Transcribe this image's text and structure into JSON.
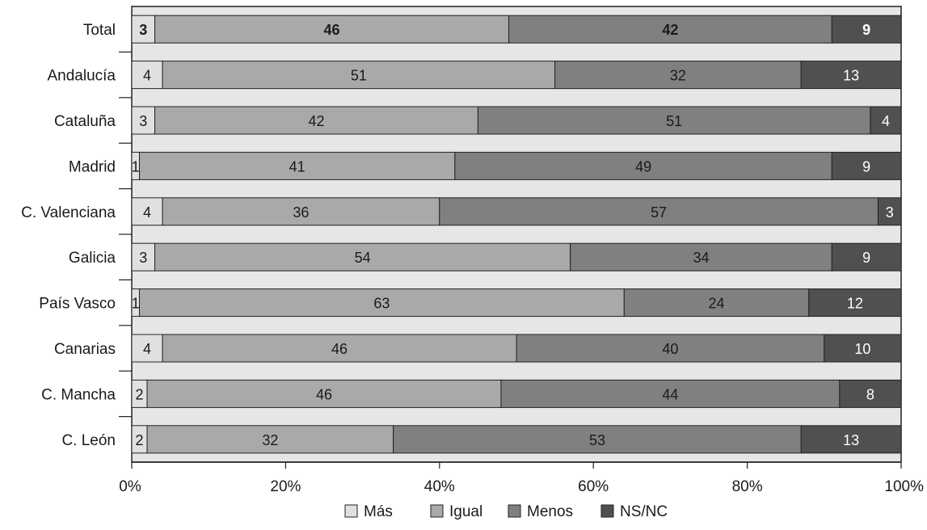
{
  "chart_data": {
    "type": "bar",
    "orientation": "horizontal",
    "stacked": true,
    "percent_stacked": true,
    "categories": [
      "Total",
      "Andalucía",
      "Cataluña",
      "Madrid",
      "C. Valenciana",
      "Galicia",
      "País Vasco",
      "Canarias",
      "C. Mancha",
      "C. León"
    ],
    "series": [
      {
        "name": "Más",
        "color": "#e0e0e0",
        "values": [
          3,
          4,
          3,
          1,
          4,
          3,
          1,
          4,
          2,
          2
        ]
      },
      {
        "name": "Igual",
        "color": "#a9a9a9",
        "values": [
          46,
          51,
          42,
          41,
          36,
          54,
          63,
          46,
          46,
          32
        ]
      },
      {
        "name": "Menos",
        "color": "#808080",
        "values": [
          42,
          32,
          51,
          49,
          57,
          34,
          24,
          40,
          44,
          53
        ]
      },
      {
        "name": "NS/NC",
        "color": "#505050",
        "values": [
          9,
          13,
          4,
          9,
          3,
          9,
          12,
          10,
          8,
          13
        ]
      }
    ],
    "bold_categories": [
      "Total"
    ],
    "x_ticks": [
      "0%",
      "20%",
      "40%",
      "60%",
      "80%",
      "100%"
    ],
    "xlim": [
      0,
      100
    ],
    "title": "",
    "xlabel": "",
    "ylabel": "",
    "grid": false,
    "legend_position": "bottom",
    "background_color": "#e6e6e6"
  }
}
